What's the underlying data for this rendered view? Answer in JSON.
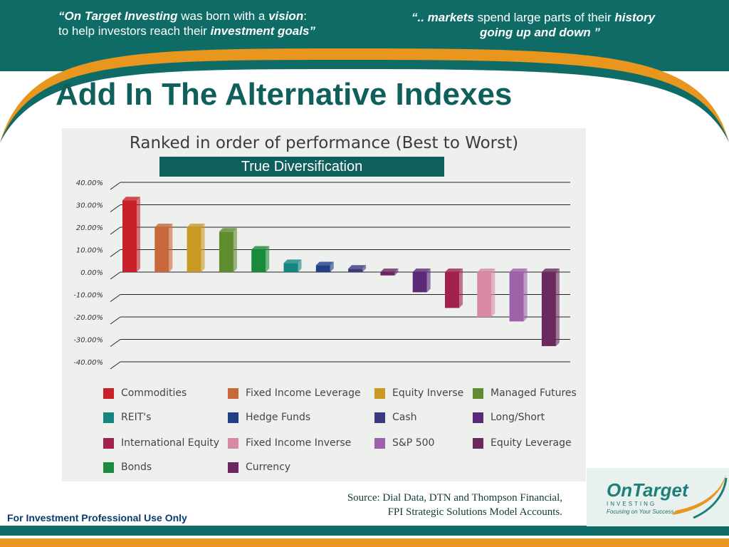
{
  "header": {
    "quote_left": {
      "open": "“",
      "b1": "On Target Investing",
      "t1": " was born with a ",
      "b2": "vision",
      "t2": ":",
      "t3": "to help investors reach their ",
      "b3": "investment goals",
      "close": "”"
    },
    "quote_right": {
      "open": "“",
      "b1": ".. markets",
      "t1": " spend large parts of their ",
      "b2": "history",
      "b3": "going up and down",
      "close": " ”"
    }
  },
  "title": "Add In The Alternative Indexes",
  "banner": "True Diversification",
  "chart_data": {
    "type": "bar",
    "title": "Ranked in order of performance (Best to Worst)",
    "ylim": [
      -40,
      40
    ],
    "yticks": [
      "40.00%",
      "30.00%",
      "20.00%",
      "10.00%",
      "0.00%",
      "-10.00%",
      "-20.00%",
      "-30.00%",
      "-40.00%"
    ],
    "grid": true,
    "legend_position": "bottom",
    "series": [
      {
        "name": "Commodities",
        "value": 32,
        "color": "#c8202a"
      },
      {
        "name": "Fixed Income Leverage",
        "value": 20,
        "color": "#c8683a"
      },
      {
        "name": "Equity Inverse",
        "value": 20,
        "color": "#c99a23"
      },
      {
        "name": "Managed Futures",
        "value": 18,
        "color": "#5e8c2e"
      },
      {
        "name": "Bonds",
        "value": 10,
        "color": "#1a8a3c"
      },
      {
        "name": "REIT's",
        "value": 4,
        "color": "#14857f"
      },
      {
        "name": "Hedge Funds",
        "value": 3,
        "color": "#1f3f86"
      },
      {
        "name": "Cash",
        "value": 1.5,
        "color": "#3a3a80"
      },
      {
        "name": "Currency",
        "value": -1.5,
        "color": "#6a2763"
      },
      {
        "name": "Long/Short",
        "value": -9,
        "color": "#5a2a78"
      },
      {
        "name": "International Equity",
        "value": -16,
        "color": "#a1224a"
      },
      {
        "name": "Fixed Income Inverse",
        "value": -20,
        "color": "#d889a6"
      },
      {
        "name": "S&P 500",
        "value": -22,
        "color": "#9c61a6"
      },
      {
        "name": "Equity Leverage",
        "value": -33,
        "color": "#6a2a5e"
      }
    ],
    "legend": [
      [
        "Commodities",
        "Fixed Income Leverage",
        "Equity Inverse",
        "Managed Futures"
      ],
      [
        "REIT's",
        "Hedge Funds",
        "Cash",
        "Long/Short"
      ],
      [
        "International Equity",
        "Fixed Income Inverse",
        "S&P 500",
        "Equity Leverage"
      ],
      [
        "Bonds",
        "Currency"
      ]
    ]
  },
  "source": {
    "line1": "Source: Dial Data, DTN and Thompson Financial,",
    "line2": "FPI Strategic Solutions Model Accounts."
  },
  "footer_note": "For Investment Professional Use Only",
  "logo": {
    "text": "OnTarget",
    "sub": "INVESTING",
    "tagline": "Focusing on Your Success"
  },
  "colors": {
    "teal": "#0f6b66",
    "orange": "#e8961e",
    "title": "#0f5f5c"
  }
}
